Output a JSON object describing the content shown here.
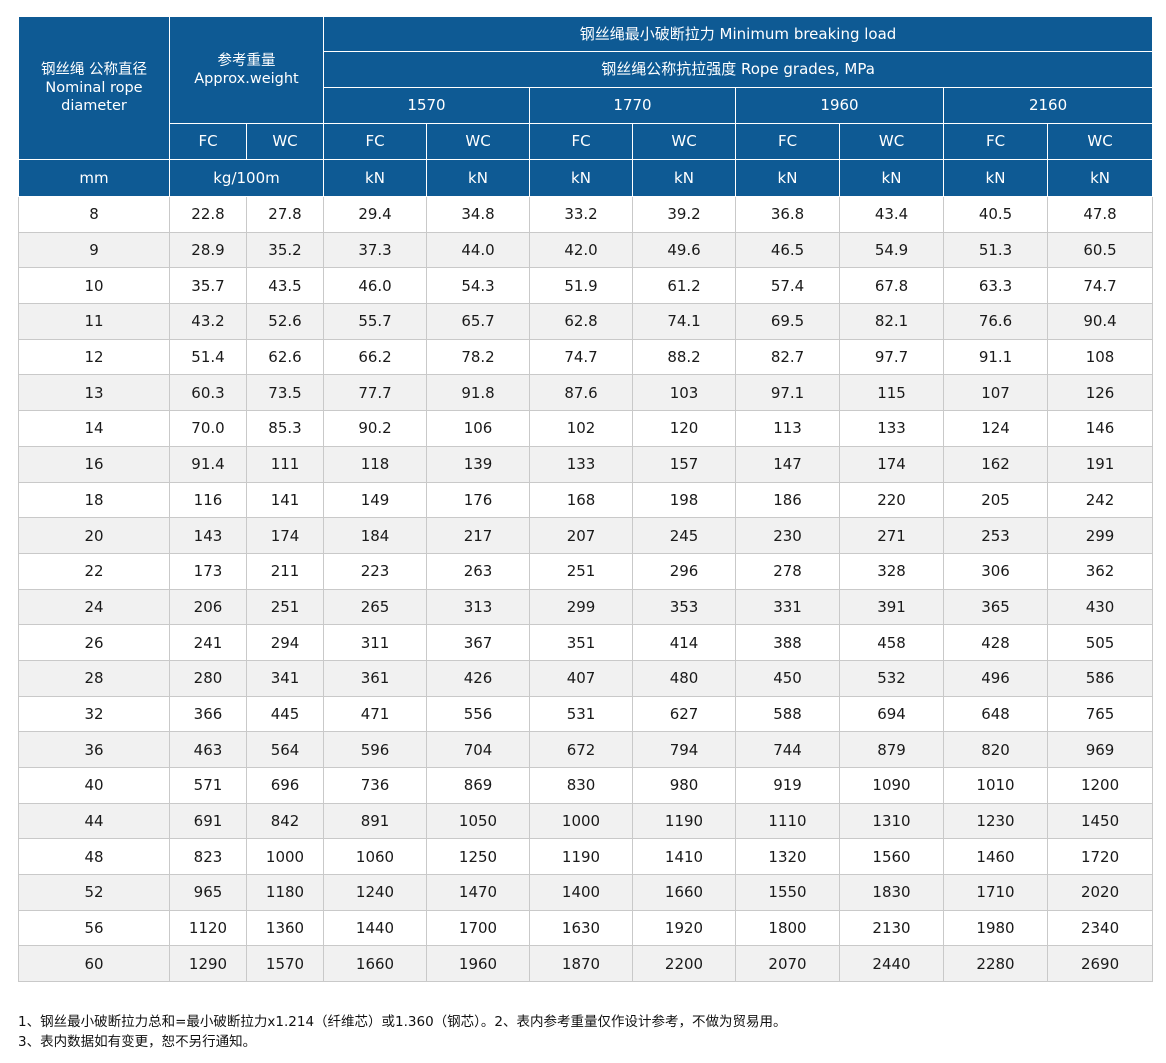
{
  "header": {
    "diameter_cn": "钢丝绳 公称直径",
    "diameter_en": "Nominal rope diameter",
    "weight_cn": "参考重量",
    "weight_en": "Approx.weight",
    "min_break_load": "钢丝绳最小破断拉力 Minimum breaking load",
    "rope_grades": "钢丝绳公称抗拉强度 Rope grades, MPa",
    "grades": [
      "1570",
      "1770",
      "1960",
      "2160"
    ],
    "core_labels": [
      "FC",
      "WC"
    ],
    "unit_diameter": "mm",
    "unit_weight": "kg/100m",
    "unit_load": "kN"
  },
  "rows": [
    [
      "8",
      "22.8",
      "27.8",
      "29.4",
      "34.8",
      "33.2",
      "39.2",
      "36.8",
      "43.4",
      "40.5",
      "47.8"
    ],
    [
      "9",
      "28.9",
      "35.2",
      "37.3",
      "44.0",
      "42.0",
      "49.6",
      "46.5",
      "54.9",
      "51.3",
      "60.5"
    ],
    [
      "10",
      "35.7",
      "43.5",
      "46.0",
      "54.3",
      "51.9",
      "61.2",
      "57.4",
      "67.8",
      "63.3",
      "74.7"
    ],
    [
      "11",
      "43.2",
      "52.6",
      "55.7",
      "65.7",
      "62.8",
      "74.1",
      "69.5",
      "82.1",
      "76.6",
      "90.4"
    ],
    [
      "12",
      "51.4",
      "62.6",
      "66.2",
      "78.2",
      "74.7",
      "88.2",
      "82.7",
      "97.7",
      "91.1",
      "108"
    ],
    [
      "13",
      "60.3",
      "73.5",
      "77.7",
      "91.8",
      "87.6",
      "103",
      "97.1",
      "115",
      "107",
      "126"
    ],
    [
      "14",
      "70.0",
      "85.3",
      "90.2",
      "106",
      "102",
      "120",
      "113",
      "133",
      "124",
      "146"
    ],
    [
      "16",
      "91.4",
      "111",
      "118",
      "139",
      "133",
      "157",
      "147",
      "174",
      "162",
      "191"
    ],
    [
      "18",
      "116",
      "141",
      "149",
      "176",
      "168",
      "198",
      "186",
      "220",
      "205",
      "242"
    ],
    [
      "20",
      "143",
      "174",
      "184",
      "217",
      "207",
      "245",
      "230",
      "271",
      "253",
      "299"
    ],
    [
      "22",
      "173",
      "211",
      "223",
      "263",
      "251",
      "296",
      "278",
      "328",
      "306",
      "362"
    ],
    [
      "24",
      "206",
      "251",
      "265",
      "313",
      "299",
      "353",
      "331",
      "391",
      "365",
      "430"
    ],
    [
      "26",
      "241",
      "294",
      "311",
      "367",
      "351",
      "414",
      "388",
      "458",
      "428",
      "505"
    ],
    [
      "28",
      "280",
      "341",
      "361",
      "426",
      "407",
      "480",
      "450",
      "532",
      "496",
      "586"
    ],
    [
      "32",
      "366",
      "445",
      "471",
      "556",
      "531",
      "627",
      "588",
      "694",
      "648",
      "765"
    ],
    [
      "36",
      "463",
      "564",
      "596",
      "704",
      "672",
      "794",
      "744",
      "879",
      "820",
      "969"
    ],
    [
      "40",
      "571",
      "696",
      "736",
      "869",
      "830",
      "980",
      "919",
      "1090",
      "1010",
      "1200"
    ],
    [
      "44",
      "691",
      "842",
      "891",
      "1050",
      "1000",
      "1190",
      "1110",
      "1310",
      "1230",
      "1450"
    ],
    [
      "48",
      "823",
      "1000",
      "1060",
      "1250",
      "1190",
      "1410",
      "1320",
      "1560",
      "1460",
      "1720"
    ],
    [
      "52",
      "965",
      "1180",
      "1240",
      "1470",
      "1400",
      "1660",
      "1550",
      "1830",
      "1710",
      "2020"
    ],
    [
      "56",
      "1120",
      "1360",
      "1440",
      "1700",
      "1630",
      "1920",
      "1800",
      "2130",
      "1980",
      "2340"
    ],
    [
      "60",
      "1290",
      "1570",
      "1660",
      "1960",
      "1870",
      "2200",
      "2070",
      "2440",
      "2280",
      "2690"
    ]
  ],
  "notes": [
    "1、钢丝最小破断拉力总和=最小破断拉力x1.214（纤维芯）或1.360（钢芯）。2、表内参考重量仅作设计参考，不做为贸易用。",
    "3、表内数据如有变更，恕不另行通知。"
  ],
  "colors": {
    "header_bg": "#0e5a94",
    "stripe": "#f1f1f1",
    "grid": "#c9c9c9"
  }
}
